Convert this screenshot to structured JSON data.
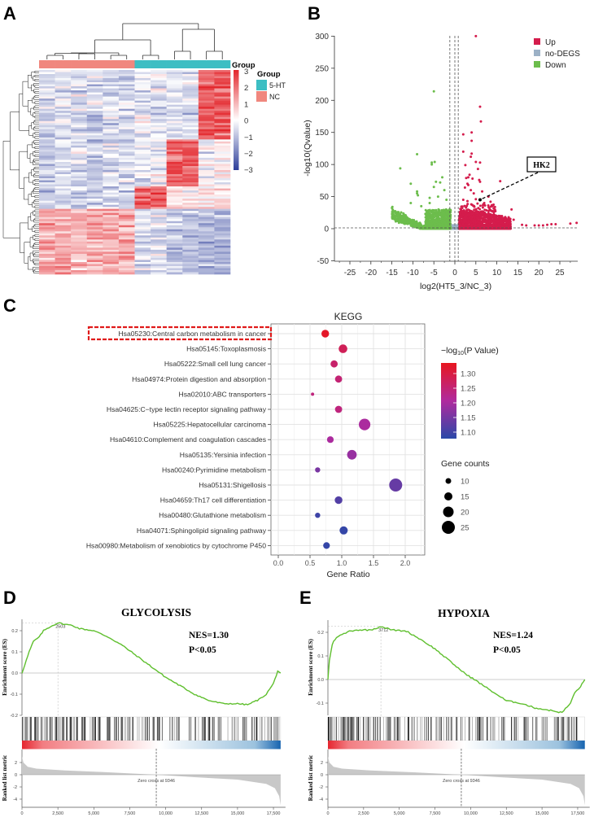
{
  "panel_labels": {
    "a": "A",
    "b": "B",
    "c": "C",
    "d": "D",
    "e": "E"
  },
  "chart_data": [
    {
      "id": "heatmap",
      "type": "heatmap",
      "group_bar_label": "Group",
      "legend_title": "Group",
      "groups": [
        {
          "name": "5-HT",
          "color": "#3dbec3"
        },
        {
          "name": "NC",
          "color": "#f0877e"
        }
      ],
      "column_groups": [
        "NC",
        "NC",
        "NC",
        "NC",
        "NC",
        "NC",
        "5-HT",
        "5-HT",
        "5-HT",
        "5-HT",
        "5-HT",
        "5-HT"
      ],
      "colorbar": {
        "ticks": [
          "3",
          "2",
          "1",
          "0",
          "−1",
          "−2",
          "−3"
        ],
        "range": [
          -3,
          3
        ],
        "low": "#2c3d9a",
        "mid": "#ffffff",
        "high": "#e3262c"
      },
      "row_count": 100,
      "row_blocks": [
        {
          "rows": 34,
          "column_means": [
            -0.6,
            -0.6,
            -0.6,
            -0.6,
            -0.6,
            -0.6,
            -0.3,
            -0.3,
            -0.4,
            -0.4,
            2.2,
            2.3
          ]
        },
        {
          "rows": 23,
          "column_means": [
            -0.6,
            -0.6,
            -0.6,
            -0.6,
            -0.6,
            -0.6,
            -0.2,
            -0.2,
            2.2,
            2.3,
            -0.1,
            0.0
          ]
        },
        {
          "rows": 11,
          "column_means": [
            -0.7,
            -0.7,
            -0.7,
            -0.7,
            -0.7,
            -0.7,
            2.1,
            2.0,
            0.4,
            0.4,
            0.1,
            0.2
          ]
        },
        {
          "rows": 32,
          "column_means": [
            1.1,
            1.1,
            1.1,
            1.2,
            1.2,
            1.1,
            -0.5,
            -0.5,
            -1.0,
            -1.0,
            -1.1,
            -1.2
          ]
        }
      ]
    },
    {
      "id": "volcano",
      "type": "scatter",
      "xlabel": "log2(HT5_3/NC_3)",
      "ylabel": "-log10(Qvalue)",
      "xlim": [
        -29,
        29
      ],
      "ylim": [
        -50,
        300
      ],
      "xticks": [
        -25,
        -20,
        -15,
        -10,
        -5,
        0,
        5,
        10,
        15,
        20,
        25
      ],
      "yticks": [
        300,
        250,
        200,
        150,
        100,
        50,
        0,
        -50
      ],
      "thresholds": {
        "log2fc": [
          -1,
          0,
          1
        ],
        "qvalue": 1.3
      },
      "legend": [
        {
          "name": "Up",
          "color": "#d41c4c"
        },
        {
          "name": "no-DEGS",
          "color": "#9cb1c6"
        },
        {
          "name": "Down",
          "color": "#6cbd4c"
        }
      ],
      "legend_position": "top-right",
      "annotation": {
        "label": "HK2",
        "point": [
          6,
          45
        ]
      },
      "bulk": {
        "up_count": 1400,
        "down_count": 1100,
        "nodeg_count": 300
      },
      "up_points": [
        [
          5,
          300
        ],
        [
          6,
          190
        ],
        [
          6.2,
          167
        ],
        [
          2,
          147
        ],
        [
          4,
          150
        ],
        [
          4,
          137
        ],
        [
          2,
          120
        ],
        [
          4,
          117
        ],
        [
          3.8,
          112
        ],
        [
          5,
          104
        ],
        [
          6,
          103
        ],
        [
          2.5,
          99
        ],
        [
          5.5,
          93
        ],
        [
          3.5,
          84
        ],
        [
          3.2,
          80
        ],
        [
          2.7,
          79
        ],
        [
          4.2,
          78
        ],
        [
          5.8,
          76
        ],
        [
          6,
          73
        ],
        [
          10.8,
          74
        ],
        [
          3,
          70
        ],
        [
          3.2,
          68
        ],
        [
          2.4,
          64
        ],
        [
          3.8,
          60
        ],
        [
          4.5,
          55
        ],
        [
          6.5,
          58
        ],
        [
          2,
          45
        ],
        [
          3,
          43
        ],
        [
          5,
          46
        ],
        [
          8,
          50
        ],
        [
          8.5,
          42
        ],
        [
          7,
          40
        ],
        [
          9,
          35
        ],
        [
          13.5,
          30
        ],
        [
          12,
          18
        ],
        [
          14,
          14
        ],
        [
          16,
          6
        ],
        [
          17,
          5
        ],
        [
          19,
          5
        ],
        [
          20,
          5
        ],
        [
          21,
          5
        ],
        [
          22,
          6
        ],
        [
          23,
          7
        ],
        [
          24,
          7
        ],
        [
          27.5,
          8
        ],
        [
          29,
          9
        ]
      ],
      "down_points": [
        [
          -5,
          214
        ],
        [
          -9,
          116
        ],
        [
          -5.5,
          103
        ],
        [
          -4.8,
          104
        ],
        [
          -5.5,
          100
        ],
        [
          -13,
          94
        ],
        [
          -3,
          80
        ],
        [
          -4.5,
          73
        ],
        [
          -10.5,
          70
        ],
        [
          -5,
          65
        ],
        [
          -3.5,
          72
        ],
        [
          -9,
          58
        ],
        [
          -9,
          55
        ],
        [
          -8.8,
          52
        ],
        [
          -2.5,
          60
        ],
        [
          -4,
          50
        ],
        [
          -6,
          48
        ],
        [
          -10.5,
          40
        ],
        [
          -6,
          40
        ],
        [
          -8,
          35
        ],
        [
          -2,
          45
        ]
      ]
    },
    {
      "id": "kegg",
      "type": "scatter",
      "title": "KEGG",
      "xlabel": "Gene Ratio",
      "xlim": [
        -0.12,
        2.31
      ],
      "xticks": [
        "0.0",
        "0.5",
        "1.0",
        "1.5",
        "2.0"
      ],
      "highlighted_term": 0,
      "color_legend": {
        "title_prefix": "−log",
        "title_sub": "10",
        "title_suffix": "(P Value)",
        "ticks": [
          "1.30",
          "1.25",
          "1.20",
          "1.15",
          "1.10"
        ],
        "range": [
          1.07,
          1.34
        ],
        "low": "#2a48a8",
        "mid": "#b02a9e",
        "high": "#e8161f"
      },
      "size_legend": {
        "title": "Gene counts",
        "values": [
          10,
          15,
          20,
          25
        ]
      },
      "terms": [
        {
          "label": "Hsa05230:Central carbon metabolism in cancer",
          "ratio": 0.74,
          "neglog10p": 1.33,
          "count": 14
        },
        {
          "label": "Hsa05145:Toxoplasmosis",
          "ratio": 1.02,
          "neglog10p": 1.28,
          "count": 16
        },
        {
          "label": "Hsa05222:Small cell lung cancer",
          "ratio": 0.88,
          "neglog10p": 1.26,
          "count": 13
        },
        {
          "label": "Hsa04974:Protein digestion and absorption",
          "ratio": 0.95,
          "neglog10p": 1.25,
          "count": 13
        },
        {
          "label": "Hsa02010:ABC transporters",
          "ratio": 0.54,
          "neglog10p": 1.24,
          "count": 5
        },
        {
          "label": "Hsa04625:C−type lectin receptor signaling pathway",
          "ratio": 0.95,
          "neglog10p": 1.24,
          "count": 13
        },
        {
          "label": "Hsa05225:Hepatocellular carcinoma",
          "ratio": 1.36,
          "neglog10p": 1.2,
          "count": 22
        },
        {
          "label": "Hsa04610:Complement and coagulation cascades",
          "ratio": 0.82,
          "neglog10p": 1.2,
          "count": 12
        },
        {
          "label": "Hsa05135:Yersinia infection",
          "ratio": 1.16,
          "neglog10p": 1.18,
          "count": 18
        },
        {
          "label": "Hsa00240:Pyrimidine metabolism",
          "ratio": 0.62,
          "neglog10p": 1.15,
          "count": 9
        },
        {
          "label": "Hsa05131:Shigellosis",
          "ratio": 1.85,
          "neglog10p": 1.13,
          "count": 25
        },
        {
          "label": "Hsa04659:Th17 cell differentiation",
          "ratio": 0.95,
          "neglog10p": 1.11,
          "count": 14
        },
        {
          "label": "Hsa00480:Glutathione metabolism",
          "ratio": 0.62,
          "neglog10p": 1.09,
          "count": 9
        },
        {
          "label": "Hsa04071:Sphingolipid signaling pathway",
          "ratio": 1.03,
          "neglog10p": 1.08,
          "count": 15
        },
        {
          "label": "Hsa00980:Metabolism of xenobiotics by cytochrome P450",
          "ratio": 0.76,
          "neglog10p": 1.08,
          "count": 12
        }
      ]
    },
    {
      "id": "gsea_glycolysis",
      "type": "line",
      "title": "GLYCOLYSIS",
      "nes_text": "NES=1.30",
      "p_text": "P<0.05",
      "ylabel_es": "Enrichment score (ES)",
      "ylabel_metric": "Ranked list metric",
      "es_ticks": [
        "0.2",
        "0.1",
        "0.0",
        "-0.1",
        "-0.2"
      ],
      "es_tick_values": [
        0.2,
        0.1,
        0,
        -0.1,
        -0.2
      ],
      "metric_ticks": [
        "2",
        "0",
        "-2",
        "-4"
      ],
      "metric_tick_values": [
        2,
        0,
        -2,
        -4
      ],
      "x_ticks": [
        "0",
        "2,500",
        "5,000",
        "7,500",
        "10,000",
        "12,500",
        "15,000",
        "17,500"
      ],
      "x_tick_values": [
        0,
        2500,
        5000,
        7500,
        10000,
        12500,
        15000,
        17500
      ],
      "peak": {
        "rank": 2503,
        "label": "2503",
        "es": 0.237
      },
      "zero_cross": {
        "rank": 9346,
        "label": "Zero cross at 9346"
      },
      "n_genes": 18000,
      "hit_count": 190,
      "es_curve": [
        [
          0,
          0
        ],
        [
          200,
          0.04
        ],
        [
          500,
          0.1
        ],
        [
          800,
          0.15
        ],
        [
          1200,
          0.17
        ],
        [
          1500,
          0.2
        ],
        [
          2000,
          0.22
        ],
        [
          2503,
          0.237
        ],
        [
          3000,
          0.23
        ],
        [
          3500,
          0.225
        ],
        [
          4000,
          0.21
        ],
        [
          5000,
          0.2
        ],
        [
          6000,
          0.17
        ],
        [
          7000,
          0.13
        ],
        [
          8000,
          0.08
        ],
        [
          9000,
          0.03
        ],
        [
          10000,
          -0.02
        ],
        [
          11000,
          -0.06
        ],
        [
          12000,
          -0.1
        ],
        [
          13000,
          -0.13
        ],
        [
          14000,
          -0.145
        ],
        [
          15000,
          -0.145
        ],
        [
          15700,
          -0.15
        ],
        [
          16500,
          -0.125
        ],
        [
          17000,
          -0.1
        ],
        [
          17500,
          -0.05
        ],
        [
          17800,
          0.01
        ],
        [
          18000,
          0
        ]
      ],
      "metric_curve": [
        [
          0,
          3
        ],
        [
          100,
          2
        ],
        [
          400,
          1.3
        ],
        [
          1000,
          1
        ],
        [
          3000,
          0.7
        ],
        [
          6000,
          0.4
        ],
        [
          9346,
          0
        ],
        [
          12000,
          -0.4
        ],
        [
          15000,
          -0.8
        ],
        [
          17000,
          -1.5
        ],
        [
          17600,
          -2.2
        ],
        [
          17900,
          -3.5
        ],
        [
          18000,
          -5
        ]
      ]
    },
    {
      "id": "gsea_hypoxia",
      "type": "line",
      "title": "HYPOXIA",
      "nes_text": "NES=1.24",
      "p_text": "P<0.05",
      "ylabel_es": "Enrichment score (ES)",
      "ylabel_metric": "Ranked list metric",
      "es_ticks": [
        "0.2",
        "0.1",
        "0.0",
        "-0.1"
      ],
      "es_tick_values": [
        0.2,
        0.1,
        0,
        -0.1
      ],
      "metric_ticks": [
        "2",
        "0",
        "-2",
        "-4"
      ],
      "metric_tick_values": [
        2,
        0,
        -2,
        -4
      ],
      "x_ticks": [
        "0",
        "2,500",
        "5,000",
        "7,500",
        "10,000",
        "12,500",
        "15,000",
        "17,500"
      ],
      "x_tick_values": [
        0,
        2500,
        5000,
        7500,
        10000,
        12500,
        15000,
        17500
      ],
      "peak": {
        "rank": 3712,
        "label": "3712",
        "es": 0.225
      },
      "zero_cross": {
        "rank": 9346,
        "label": "Zero cross at 9346"
      },
      "n_genes": 18000,
      "hit_count": 200,
      "es_curve": [
        [
          0,
          0
        ],
        [
          100,
          0.08
        ],
        [
          300,
          0.15
        ],
        [
          600,
          0.18
        ],
        [
          1000,
          0.19
        ],
        [
          1500,
          0.205
        ],
        [
          2000,
          0.21
        ],
        [
          3000,
          0.21
        ],
        [
          3712,
          0.225
        ],
        [
          4500,
          0.21
        ],
        [
          5500,
          0.205
        ],
        [
          6500,
          0.17
        ],
        [
          7500,
          0.13
        ],
        [
          8500,
          0.08
        ],
        [
          9500,
          0.03
        ],
        [
          10500,
          -0.01
        ],
        [
          11500,
          -0.05
        ],
        [
          12500,
          -0.09
        ],
        [
          13500,
          -0.1
        ],
        [
          14500,
          -0.12
        ],
        [
          15500,
          -0.13
        ],
        [
          16400,
          -0.14
        ],
        [
          17000,
          -0.1
        ],
        [
          17300,
          -0.055
        ],
        [
          17700,
          -0.03
        ],
        [
          18000,
          0
        ]
      ],
      "metric_curve": [
        [
          0,
          3
        ],
        [
          100,
          2
        ],
        [
          400,
          1.3
        ],
        [
          1000,
          1
        ],
        [
          3000,
          0.7
        ],
        [
          6000,
          0.4
        ],
        [
          9346,
          0
        ],
        [
          12000,
          -0.4
        ],
        [
          15000,
          -0.8
        ],
        [
          17000,
          -1.5
        ],
        [
          17600,
          -2.2
        ],
        [
          17900,
          -3.5
        ],
        [
          18000,
          -5
        ]
      ]
    }
  ]
}
